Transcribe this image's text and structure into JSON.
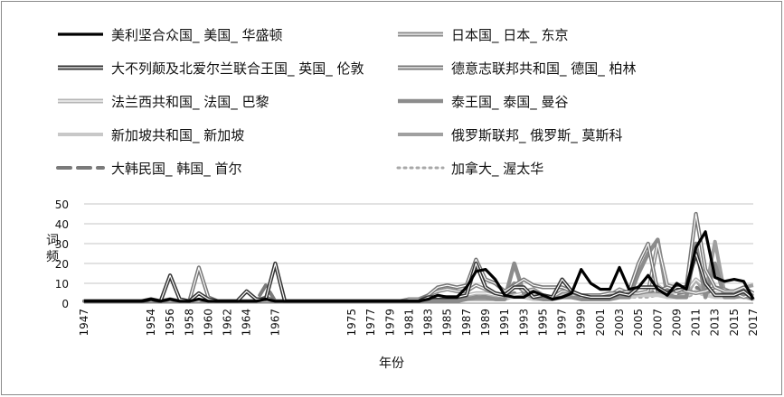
{
  "chart_data": {
    "type": "line",
    "title": "",
    "xlabel": "年份",
    "ylabel": "词频",
    "ylim": [
      0,
      50
    ],
    "yticks": [
      0,
      10,
      20,
      30,
      40,
      50
    ],
    "grid": true,
    "legend_placement": "top",
    "x": [
      1947,
      1948,
      1949,
      1950,
      1951,
      1952,
      1953,
      1954,
      1955,
      1956,
      1957,
      1958,
      1959,
      1960,
      1961,
      1962,
      1963,
      1964,
      1965,
      1966,
      1967,
      1968,
      1969,
      1970,
      1971,
      1972,
      1973,
      1974,
      1975,
      1976,
      1977,
      1978,
      1979,
      1980,
      1981,
      1982,
      1983,
      1984,
      1985,
      1986,
      1987,
      1988,
      1989,
      1990,
      1991,
      1992,
      1993,
      1994,
      1995,
      1996,
      1997,
      1998,
      1999,
      2000,
      2001,
      2002,
      2003,
      2004,
      2005,
      2006,
      2007,
      2008,
      2009,
      2010,
      2011,
      2012,
      2013,
      2014,
      2015,
      2016,
      2017
    ],
    "x_tick_labels": [
      "1947",
      "1954",
      "1956",
      "1958",
      "1960",
      "1962",
      "1964",
      "1967",
      "1975",
      "1977",
      "1979",
      "1981",
      "1983",
      "1985",
      "1987",
      "1989",
      "1991",
      "1993",
      "1995",
      "1997",
      "1999",
      "2001",
      "2003",
      "2005",
      "2007",
      "2009",
      "2011",
      "2013",
      "2015",
      "2017"
    ],
    "series": [
      {
        "name": "美利坚合众国_ 美国_ 华盛顿",
        "color": "#000000",
        "width": 3.2,
        "dash": "",
        "double": false,
        "values": [
          1,
          1,
          1,
          1,
          1,
          1,
          1,
          2,
          1,
          2,
          1,
          1,
          2,
          1,
          1,
          1,
          1,
          1,
          1,
          2,
          1,
          1,
          1,
          1,
          1,
          1,
          1,
          1,
          1,
          1,
          1,
          1,
          1,
          1,
          1,
          1,
          2,
          4,
          3,
          3,
          8,
          16,
          17,
          12,
          4,
          3,
          3,
          6,
          4,
          2,
          3,
          5,
          17,
          10,
          7,
          7,
          18,
          7,
          8,
          14,
          7,
          4,
          10,
          7,
          28,
          36,
          13,
          11,
          12,
          11,
          2
        ]
      },
      {
        "name": "日本国_ 日本_ 东京",
        "color": "#888888",
        "width": 5,
        "dash": "",
        "double": true,
        "values": [
          1,
          1,
          1,
          1,
          1,
          1,
          1,
          1,
          1,
          1,
          1,
          1,
          1,
          2,
          1,
          1,
          1,
          1,
          1,
          1,
          1,
          1,
          1,
          1,
          1,
          1,
          1,
          1,
          1,
          1,
          1,
          1,
          1,
          1,
          2,
          2,
          4,
          6,
          7,
          6,
          6,
          9,
          7,
          5,
          4,
          10,
          6,
          7,
          4,
          3,
          6,
          6,
          3,
          3,
          4,
          4,
          7,
          5,
          5,
          6,
          30,
          9,
          8,
          6,
          5,
          6,
          8,
          7,
          5,
          3,
          5
        ]
      },
      {
        "name": "大不列颠及北爱尔兰联合王国_ 英国_ 伦敦",
        "color": "#333333",
        "width": 5,
        "dash": "",
        "double": true,
        "values": [
          1,
          1,
          1,
          1,
          1,
          1,
          1,
          2,
          1,
          14,
          2,
          1,
          5,
          2,
          1,
          1,
          1,
          6,
          2,
          2,
          20,
          1,
          1,
          1,
          1,
          1,
          1,
          1,
          1,
          1,
          1,
          1,
          1,
          1,
          1,
          1,
          3,
          3,
          3,
          3,
          4,
          20,
          8,
          5,
          4,
          8,
          8,
          3,
          4,
          3,
          12,
          6,
          4,
          3,
          3,
          3,
          5,
          4,
          8,
          8,
          8,
          5,
          8,
          8,
          25,
          10,
          4,
          4,
          4,
          6,
          2
        ]
      },
      {
        "name": "德意志联邦共和国_ 德国_ 柏林",
        "color": "#777777",
        "width": 5,
        "dash": "",
        "double": true,
        "values": [
          1,
          1,
          1,
          1,
          1,
          1,
          1,
          1,
          1,
          2,
          1,
          1,
          18,
          3,
          1,
          1,
          1,
          1,
          1,
          3,
          1,
          1,
          1,
          1,
          1,
          1,
          1,
          1,
          1,
          1,
          1,
          1,
          1,
          1,
          1,
          1,
          4,
          8,
          9,
          8,
          9,
          22,
          12,
          10,
          6,
          9,
          12,
          9,
          8,
          8,
          8,
          6,
          4,
          4,
          4,
          5,
          5,
          6,
          20,
          30,
          6,
          8,
          6,
          8,
          45,
          17,
          8,
          6,
          6,
          8,
          5
        ]
      },
      {
        "name": "法兰西共和国_ 法国_ 巴黎",
        "color": "#b5b5b5",
        "width": 5,
        "dash": "",
        "double": true,
        "values": [
          1,
          1,
          1,
          1,
          1,
          1,
          1,
          1,
          1,
          1,
          1,
          1,
          1,
          1,
          1,
          1,
          1,
          1,
          1,
          1,
          1,
          1,
          1,
          1,
          1,
          1,
          1,
          1,
          1,
          1,
          1,
          1,
          1,
          1,
          1,
          1,
          2,
          3,
          3,
          3,
          4,
          5,
          5,
          4,
          3,
          4,
          5,
          4,
          3,
          3,
          4,
          4,
          3,
          3,
          3,
          3,
          4,
          4,
          5,
          6,
          9,
          5,
          6,
          6,
          12,
          8,
          5,
          4,
          4,
          5,
          3
        ]
      },
      {
        "name": "泰王国_ 泰国_ 曼谷",
        "color": "#8c8c8c",
        "width": 4.5,
        "dash": "",
        "double": false,
        "values": [
          1,
          1,
          1,
          1,
          1,
          1,
          1,
          1,
          1,
          1,
          1,
          1,
          1,
          1,
          1,
          1,
          1,
          1,
          1,
          1,
          1,
          1,
          1,
          1,
          1,
          1,
          1,
          1,
          1,
          1,
          1,
          1,
          1,
          1,
          1,
          1,
          1,
          1,
          1,
          1,
          2,
          3,
          3,
          2,
          2,
          20,
          5,
          3,
          2,
          2,
          3,
          3,
          2,
          2,
          2,
          2,
          3,
          3,
          15,
          25,
          32,
          4,
          3,
          3,
          30,
          3,
          20,
          3,
          3,
          4,
          2
        ]
      },
      {
        "name": "新加坡共和国_ 新加坡",
        "color": "#c8c8c8",
        "width": 4,
        "dash": "",
        "double": false,
        "values": [
          1,
          1,
          1,
          1,
          1,
          1,
          1,
          1,
          1,
          1,
          1,
          1,
          1,
          1,
          1,
          1,
          1,
          1,
          1,
          1,
          1,
          1,
          1,
          1,
          1,
          1,
          1,
          1,
          1,
          1,
          1,
          1,
          1,
          1,
          1,
          1,
          2,
          2,
          2,
          2,
          3,
          3,
          3,
          3,
          3,
          3,
          3,
          2,
          2,
          2,
          3,
          3,
          3,
          2,
          2,
          2,
          3,
          3,
          4,
          4,
          4,
          3,
          3,
          4,
          6,
          4,
          3,
          3,
          3,
          3,
          2
        ]
      },
      {
        "name": "俄罗斯联邦_ 俄罗斯_ 莫斯科",
        "color": "#a0a0a0",
        "width": 4,
        "dash": "",
        "double": false,
        "values": [
          1,
          1,
          1,
          1,
          1,
          1,
          1,
          1,
          1,
          1,
          1,
          1,
          1,
          1,
          1,
          1,
          1,
          1,
          1,
          1,
          1,
          1,
          1,
          1,
          1,
          1,
          1,
          1,
          1,
          1,
          1,
          1,
          1,
          1,
          1,
          1,
          1,
          1,
          1,
          1,
          2,
          2,
          2,
          2,
          2,
          4,
          3,
          2,
          2,
          2,
          3,
          3,
          2,
          2,
          2,
          2,
          3,
          3,
          4,
          4,
          5,
          3,
          3,
          4,
          12,
          5,
          31,
          5,
          5,
          8,
          9
        ]
      },
      {
        "name": "大韩民国_ 韩国_ 首尔",
        "color": "#7a7a7a",
        "width": 4,
        "dash": "14 8",
        "double": false,
        "values": [
          1,
          1,
          1,
          1,
          1,
          1,
          1,
          1,
          1,
          1,
          1,
          1,
          1,
          1,
          1,
          1,
          1,
          1,
          1,
          9,
          1,
          1,
          1,
          1,
          1,
          1,
          1,
          1,
          1,
          1,
          1,
          1,
          1,
          1,
          1,
          1,
          2,
          2,
          2,
          2,
          3,
          4,
          4,
          3,
          3,
          5,
          4,
          3,
          3,
          3,
          4,
          4,
          3,
          3,
          3,
          3,
          4,
          4,
          5,
          5,
          6,
          4,
          4,
          5,
          8,
          6,
          5,
          4,
          4,
          4,
          3
        ]
      },
      {
        "name": "加拿大_ 渥太华",
        "color": "#a8a8a8",
        "width": 3,
        "dash": "2 5",
        "double": false,
        "values": [
          1,
          1,
          1,
          1,
          1,
          1,
          1,
          1,
          1,
          1,
          1,
          1,
          1,
          1,
          1,
          1,
          1,
          1,
          1,
          1,
          1,
          1,
          1,
          1,
          1,
          1,
          1,
          1,
          1,
          1,
          1,
          1,
          1,
          1,
          1,
          1,
          2,
          2,
          2,
          2,
          2,
          3,
          3,
          2,
          2,
          3,
          3,
          2,
          2,
          2,
          3,
          3,
          2,
          2,
          2,
          2,
          3,
          3,
          3,
          3,
          4,
          3,
          3,
          3,
          5,
          4,
          3,
          3,
          3,
          3,
          2
        ]
      }
    ]
  }
}
